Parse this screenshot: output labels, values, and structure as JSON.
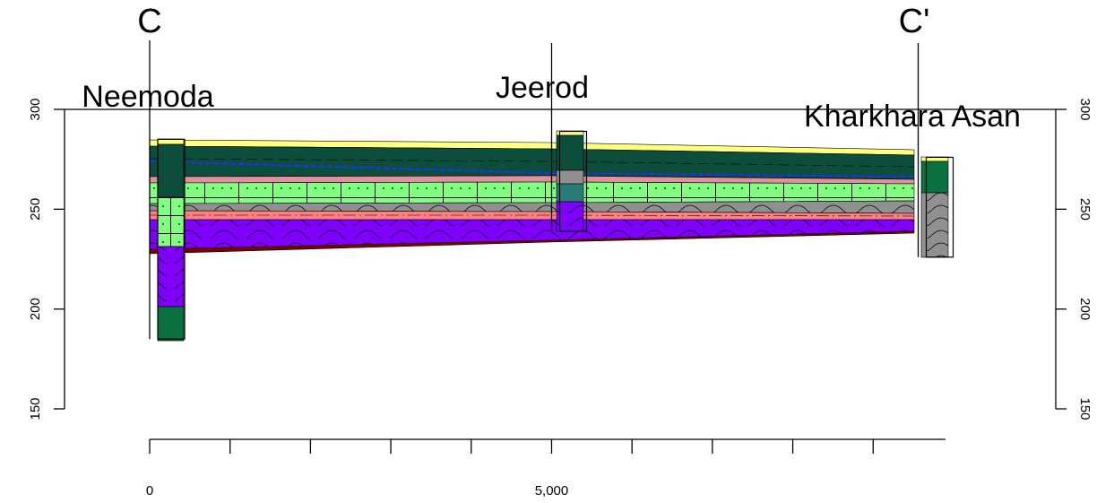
{
  "chart_data": {
    "type": "cross-section",
    "section_start": "C",
    "section_end": "C'",
    "xlim": [
      0,
      9900
    ],
    "xticks": [
      0,
      {
        "value": 5000,
        "label": "5,000"
      }
    ],
    "xminor_ticks": [
      1000,
      2000,
      3000,
      4000,
      6000,
      7000,
      8000,
      9000
    ],
    "ylim": [
      150,
      300
    ],
    "yticks": [
      150,
      200,
      250,
      300
    ],
    "wells": [
      {
        "name": "Neemoda",
        "x": 0,
        "top": 285,
        "bottom": 185
      },
      {
        "name": "Jeerod",
        "x": 5000,
        "top": 289,
        "bottom": 239
      },
      {
        "name": "Kharkhara Asan",
        "x": 9560,
        "top": 276,
        "bottom": 226
      }
    ]
  }
}
